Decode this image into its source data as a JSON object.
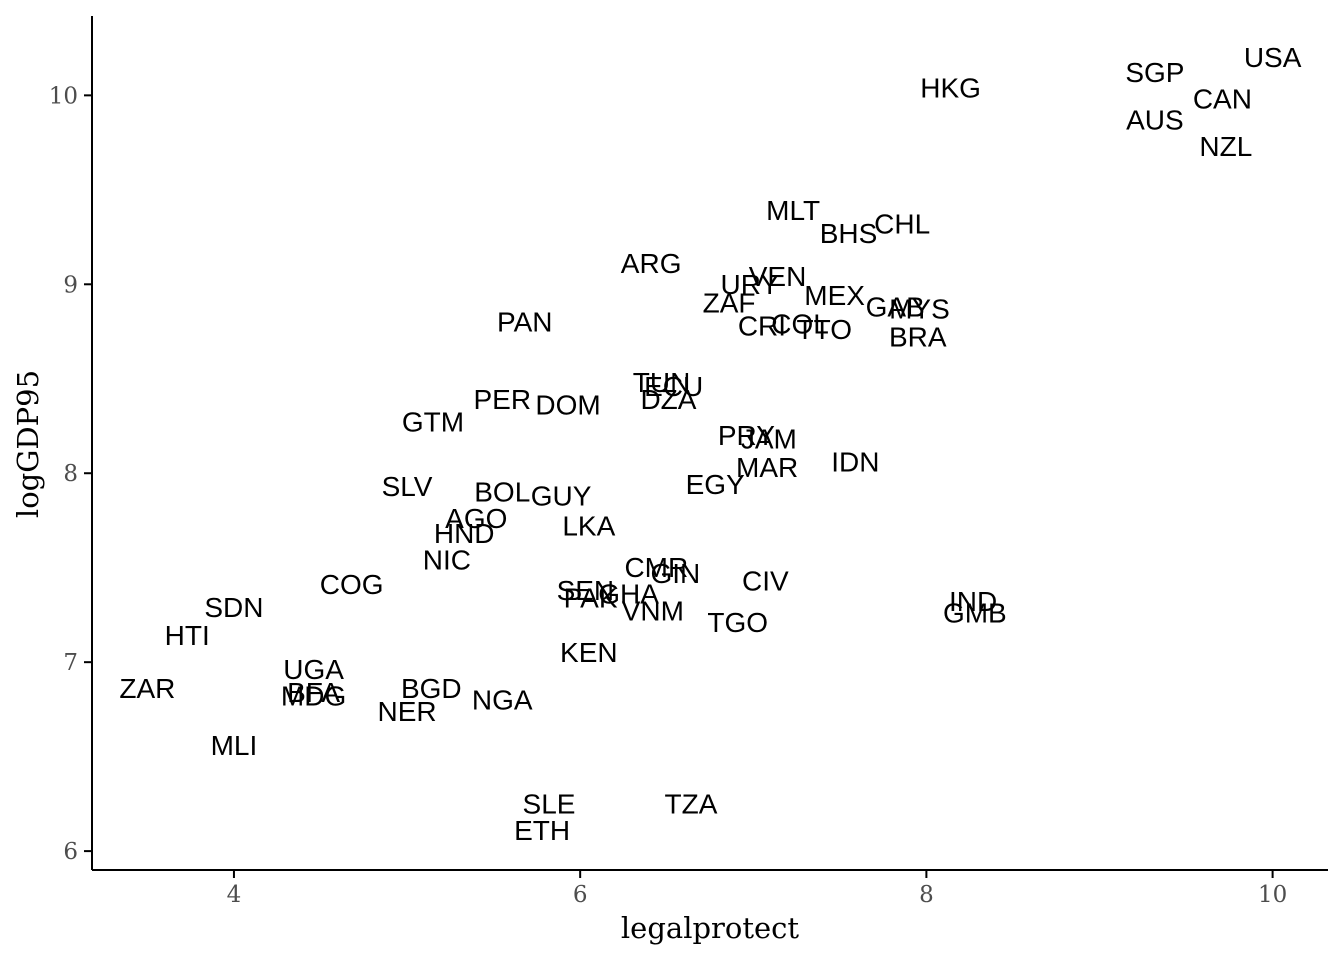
{
  "chart_data": {
    "type": "scatter",
    "title": "",
    "xlabel": "legalprotect",
    "ylabel": "logGDP95",
    "xlim": [
      3.18,
      10.32
    ],
    "ylim": [
      5.9,
      10.42
    ],
    "x_ticks": [
      4,
      6,
      8,
      10
    ],
    "y_ticks": [
      6,
      7,
      8,
      9,
      10
    ],
    "grid": false,
    "legend": "none",
    "colors": {
      "label": "#000000",
      "axis": "#000000",
      "tick_label": "#4d4d4d",
      "background": "#ffffff"
    },
    "points": [
      {
        "label": "USA",
        "x": 10.0,
        "y": 10.2
      },
      {
        "label": "SGP",
        "x": 9.32,
        "y": 10.12
      },
      {
        "label": "CAN",
        "x": 9.71,
        "y": 9.98
      },
      {
        "label": "AUS",
        "x": 9.32,
        "y": 9.87
      },
      {
        "label": "NZL",
        "x": 9.73,
        "y": 9.73
      },
      {
        "label": "HKG",
        "x": 8.14,
        "y": 10.04
      },
      {
        "label": "MLT",
        "x": 7.23,
        "y": 9.39
      },
      {
        "label": "BHS",
        "x": 7.55,
        "y": 9.27
      },
      {
        "label": "CHL",
        "x": 7.86,
        "y": 9.32
      },
      {
        "label": "ARG",
        "x": 6.41,
        "y": 9.11
      },
      {
        "label": "VEN",
        "x": 7.14,
        "y": 9.04
      },
      {
        "label": "URY",
        "x": 6.98,
        "y": 9.0
      },
      {
        "label": "MEX",
        "x": 7.47,
        "y": 8.94
      },
      {
        "label": "GAB",
        "x": 7.82,
        "y": 8.88
      },
      {
        "label": "MYS",
        "x": 7.96,
        "y": 8.87
      },
      {
        "label": "ZAF",
        "x": 6.86,
        "y": 8.9
      },
      {
        "label": "PAN",
        "x": 5.68,
        "y": 8.8
      },
      {
        "label": "CRI",
        "x": 7.05,
        "y": 8.78
      },
      {
        "label": "COL",
        "x": 7.27,
        "y": 8.79
      },
      {
        "label": "TTO",
        "x": 7.41,
        "y": 8.76
      },
      {
        "label": "BRA",
        "x": 7.95,
        "y": 8.72
      },
      {
        "label": "TUN",
        "x": 6.47,
        "y": 8.48
      },
      {
        "label": "ECU",
        "x": 6.54,
        "y": 8.46
      },
      {
        "label": "DZA",
        "x": 6.51,
        "y": 8.39
      },
      {
        "label": "PER",
        "x": 5.55,
        "y": 8.39
      },
      {
        "label": "DOM",
        "x": 5.93,
        "y": 8.36
      },
      {
        "label": "GTM",
        "x": 5.15,
        "y": 8.27
      },
      {
        "label": "PRY",
        "x": 6.96,
        "y": 8.2
      },
      {
        "label": "JAM",
        "x": 7.09,
        "y": 8.18
      },
      {
        "label": "IDN",
        "x": 7.59,
        "y": 8.06
      },
      {
        "label": "MAR",
        "x": 7.08,
        "y": 8.03
      },
      {
        "label": "EGY",
        "x": 6.78,
        "y": 7.94
      },
      {
        "label": "SLV",
        "x": 5.0,
        "y": 7.93
      },
      {
        "label": "BOL",
        "x": 5.55,
        "y": 7.9
      },
      {
        "label": "GUY",
        "x": 5.89,
        "y": 7.88
      },
      {
        "label": "AGO",
        "x": 5.4,
        "y": 7.76
      },
      {
        "label": "LKA",
        "x": 6.05,
        "y": 7.72
      },
      {
        "label": "HND",
        "x": 5.33,
        "y": 7.68
      },
      {
        "label": "NIC",
        "x": 5.23,
        "y": 7.54
      },
      {
        "label": "CMR",
        "x": 6.44,
        "y": 7.5
      },
      {
        "label": "GIN",
        "x": 6.55,
        "y": 7.47
      },
      {
        "label": "CIV",
        "x": 7.07,
        "y": 7.43
      },
      {
        "label": "COG",
        "x": 4.68,
        "y": 7.41
      },
      {
        "label": "SEN",
        "x": 6.03,
        "y": 7.38
      },
      {
        "label": "PAK",
        "x": 6.06,
        "y": 7.34
      },
      {
        "label": "GHA",
        "x": 6.28,
        "y": 7.36
      },
      {
        "label": "VNM",
        "x": 6.42,
        "y": 7.27
      },
      {
        "label": "IND",
        "x": 8.27,
        "y": 7.32
      },
      {
        "label": "GMB",
        "x": 8.28,
        "y": 7.26
      },
      {
        "label": "SDN",
        "x": 4.0,
        "y": 7.29
      },
      {
        "label": "TGO",
        "x": 6.91,
        "y": 7.21
      },
      {
        "label": "HTI",
        "x": 3.73,
        "y": 7.14
      },
      {
        "label": "KEN",
        "x": 6.05,
        "y": 7.05
      },
      {
        "label": "UGA",
        "x": 4.46,
        "y": 6.96
      },
      {
        "label": "ZAR",
        "x": 3.5,
        "y": 6.86
      },
      {
        "label": "BFA",
        "x": 4.46,
        "y": 6.84
      },
      {
        "label": "MDG",
        "x": 4.46,
        "y": 6.82
      },
      {
        "label": "BGD",
        "x": 5.14,
        "y": 6.86
      },
      {
        "label": "NGA",
        "x": 5.55,
        "y": 6.8
      },
      {
        "label": "NER",
        "x": 5.0,
        "y": 6.74
      },
      {
        "label": "MLI",
        "x": 4.0,
        "y": 6.56
      },
      {
        "label": "SLE",
        "x": 5.82,
        "y": 6.25
      },
      {
        "label": "TZA",
        "x": 6.64,
        "y": 6.25
      },
      {
        "label": "ETH",
        "x": 5.78,
        "y": 6.11
      }
    ]
  }
}
